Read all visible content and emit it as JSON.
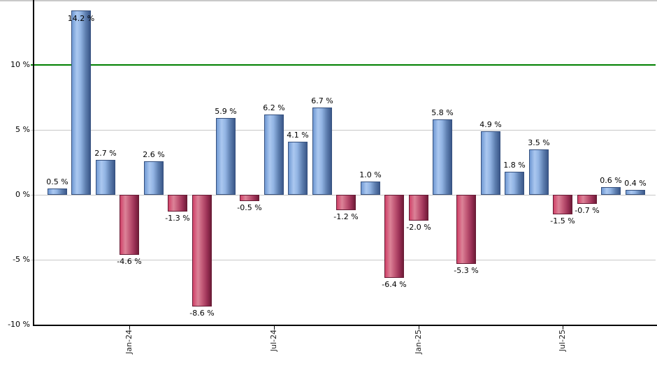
{
  "chart_data": {
    "type": "bar",
    "title": "",
    "unit": "%",
    "values": [
      0.5,
      14.2,
      2.7,
      -4.6,
      2.6,
      -1.3,
      -8.6,
      5.9,
      -0.5,
      6.2,
      4.1,
      6.7,
      -1.2,
      1.0,
      -6.4,
      -2.0,
      5.8,
      -5.3,
      4.9,
      1.8,
      3.5,
      -1.5,
      -0.7,
      0.6,
      0.4
    ],
    "value_labels": [
      "0.5 %",
      "14.2 %",
      "2.7 %",
      "-4.6 %",
      "2.6 %",
      "-1.3 %",
      "-8.6 %",
      "5.9 %",
      "-0.5 %",
      "6.2 %",
      "4.1 %",
      "6.7 %",
      "-1.2 %",
      "1.0 %",
      "-6.4 %",
      "-2.0 %",
      "5.8 %",
      "-5.3 %",
      "4.9 %",
      "1.8 %",
      "3.5 %",
      "-1.5 %",
      "-0.7 %",
      "0.6 %",
      "0.4 %"
    ],
    "x_ticks": [
      {
        "label": "Jan-24",
        "bar_index": 3
      },
      {
        "label": "Jul-24",
        "bar_index": 9
      },
      {
        "label": "Jan-25",
        "bar_index": 15
      },
      {
        "label": "Jul-25",
        "bar_index": 21
      }
    ],
    "y_ticks": [
      {
        "label": "10 %",
        "value": 10
      },
      {
        "label": "5 %",
        "value": 5
      },
      {
        "label": "0 %",
        "value": 0
      },
      {
        "label": "-5 %",
        "value": -5
      },
      {
        "label": "-10 %",
        "value": -10
      }
    ],
    "gridline_values": [
      5,
      0,
      -5
    ],
    "ylim": [
      -10.2,
      14.9
    ],
    "reference_line": {
      "value": 10,
      "color": "#008000"
    },
    "legend_position": "none",
    "grid": true,
    "colors": {
      "positive_bar_light": "#abc8f0",
      "positive_bar_main": "#92b4e3",
      "positive_bar_dark": "#3b588a",
      "negative_bar_light": "#dc8398",
      "negative_bar_main": "#c25977",
      "negative_bar_dark": "#6f1c38",
      "gridline": "#c8c8c8",
      "reference_line": "#008000",
      "axis": "#000000",
      "top_border": "#c9c9c9",
      "label_text": "#000000"
    }
  }
}
